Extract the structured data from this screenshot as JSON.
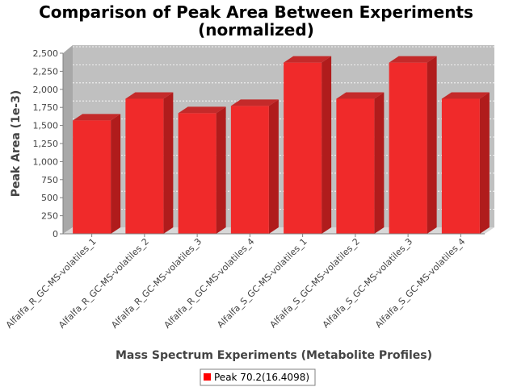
{
  "chart_data": {
    "type": "bar",
    "title": "Comparison of Peak Area Between Experiments",
    "subtitle": "(normalized)",
    "xlabel": "Mass Spectrum Experiments (Metabolite Profiles)",
    "ylabel": "Peak Area (1e-3)",
    "ylim": [
      0,
      2500
    ],
    "yticks": [
      "0",
      "250",
      "500",
      "750",
      "1,000",
      "1,250",
      "1,500",
      "1,750",
      "2,000",
      "2,250",
      "2,500"
    ],
    "categories": [
      "Alfalfa_R_GC-MS-volatiles_1",
      "Alfalfa_R_GC-MS-volatiles_2",
      "Alfalfa_R_GC-MS-volatiles_3",
      "Alfalfa_R_GC-MS-volatiles_4",
      "Alfalfa_S_GC-MS-volatiles_1",
      "Alfalfa_S_GC-MS-volatiles_2",
      "Alfalfa_S_GC-MS-volatiles_3",
      "Alfalfa_S_GC-MS-volatiles_4"
    ],
    "series": [
      {
        "name": "Peak 70.2(16.4098)",
        "values": [
          1570,
          1870,
          1670,
          1770,
          2370,
          1870,
          2370,
          1870
        ],
        "color": "#ff0000"
      }
    ],
    "grid": true,
    "legend": "bottom",
    "plot_background": "#c0c0c0"
  }
}
